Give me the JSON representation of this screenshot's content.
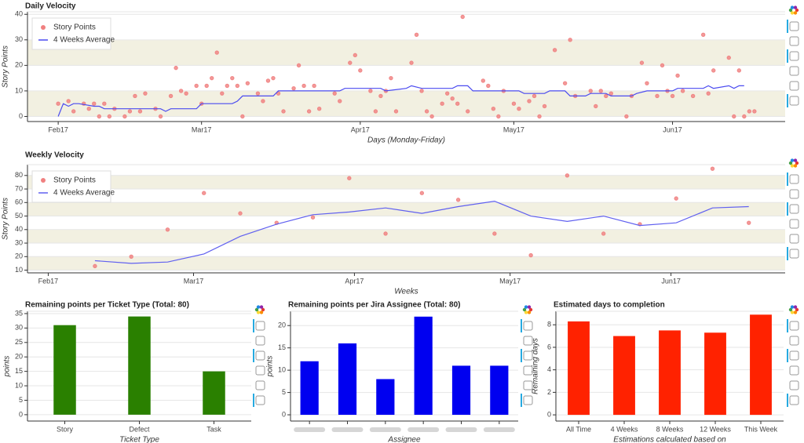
{
  "chart_data": [
    {
      "type": "scatter",
      "title": "Daily Velocity",
      "x_label": "Days (Monday-Friday)",
      "y_label": "Story Points",
      "xlim": [
        26,
        174
      ],
      "xticks": [
        {
          "value": 32,
          "label": "Feb17"
        },
        {
          "value": 60,
          "label": "Mar17"
        },
        {
          "value": 91,
          "label": "Apr17"
        },
        {
          "value": 121,
          "label": "May17"
        },
        {
          "value": 152,
          "label": "Jun17"
        }
      ],
      "ylim": [
        -2,
        41
      ],
      "yticks": [
        0,
        10,
        20,
        30,
        40
      ],
      "band_color": "#f2f0e1",
      "legend": "top_left",
      "series": [
        {
          "name": "Story Points",
          "style": "marker",
          "color": "#f08080",
          "x": [
            32,
            34,
            35,
            37,
            38,
            39,
            40,
            41,
            42,
            43,
            45,
            46,
            47,
            48,
            49,
            51,
            52,
            54,
            55,
            56,
            57,
            59,
            60,
            61,
            62,
            63,
            64,
            65,
            66,
            67,
            68,
            69,
            71,
            72,
            73,
            74,
            75,
            76,
            78,
            79,
            80,
            81,
            82,
            83,
            86,
            87,
            89,
            90,
            91,
            93,
            94,
            95,
            96,
            97,
            98,
            101,
            102,
            103,
            104,
            105,
            107,
            108,
            109,
            110,
            111,
            112,
            115,
            116,
            117,
            118,
            119,
            121,
            122,
            124,
            125,
            126,
            127,
            129,
            131,
            132,
            133,
            136,
            137,
            138,
            139,
            140,
            143,
            144,
            146,
            147,
            149,
            150,
            151,
            152,
            153,
            154,
            156,
            158,
            159,
            160,
            163,
            164,
            165,
            166,
            167,
            168
          ],
          "values": [
            5,
            6,
            2,
            5,
            3,
            5,
            0,
            5,
            0,
            3,
            0,
            2,
            8,
            2,
            9,
            3,
            0,
            8,
            19,
            10,
            9,
            12,
            5,
            12,
            15,
            25,
            9,
            12,
            15,
            12,
            0,
            13,
            9,
            6,
            14,
            15,
            9,
            2,
            11,
            20,
            12,
            2,
            12,
            3,
            9,
            6,
            21,
            24,
            18,
            10,
            2,
            8,
            10,
            15,
            2,
            21,
            32,
            10,
            2,
            0,
            5,
            9,
            7,
            5,
            39,
            2,
            14,
            12,
            3,
            0,
            10,
            5,
            3,
            6,
            8,
            0,
            4,
            26,
            13,
            30,
            8,
            10,
            4,
            10,
            8,
            9,
            0,
            8,
            21,
            13,
            8,
            20,
            10,
            8,
            16,
            10,
            8,
            32,
            9,
            18,
            23,
            0,
            18,
            0,
            2,
            2
          ]
        },
        {
          "name": "4 Weeks Average",
          "style": "line",
          "color": "#4b4bf0",
          "x": [
            32,
            33,
            34,
            35,
            36,
            39,
            40,
            41,
            47,
            52,
            53,
            54,
            59,
            60,
            66,
            67,
            68,
            74,
            75,
            87,
            88,
            95,
            96,
            100,
            101,
            103,
            109,
            110,
            112,
            113,
            122,
            123,
            127,
            128,
            131,
            132,
            135,
            136,
            139,
            140,
            144,
            145,
            147,
            152,
            153,
            158,
            159,
            160,
            163,
            164,
            165,
            166
          ],
          "values": [
            0,
            5,
            4,
            5,
            5,
            4,
            4,
            3,
            3,
            3,
            2,
            3,
            3,
            5,
            5,
            6,
            8,
            8,
            10,
            10,
            11,
            11,
            10,
            11,
            12,
            11,
            11,
            12,
            12,
            10,
            10,
            9,
            9,
            10,
            10,
            8,
            8,
            9,
            9,
            8,
            8,
            9,
            10,
            10,
            11,
            11,
            12,
            11,
            12,
            11,
            12,
            12
          ]
        }
      ]
    },
    {
      "type": "scatter",
      "title": "Weekly Velocity",
      "x_label": "Weeks",
      "y_label": "Story Points",
      "xlim": [
        28,
        174
      ],
      "xticks": [
        {
          "value": 32,
          "label": "Feb17"
        },
        {
          "value": 60,
          "label": "Mar17"
        },
        {
          "value": 91,
          "label": "Apr17"
        },
        {
          "value": 121,
          "label": "May17"
        },
        {
          "value": 152,
          "label": "Jun17"
        }
      ],
      "ylim": [
        8,
        88
      ],
      "yticks": [
        10,
        20,
        30,
        40,
        50,
        60,
        70,
        80
      ],
      "band_color": "#f2f0e1",
      "legend": "top_left",
      "series": [
        {
          "name": "Story Points",
          "style": "marker",
          "color": "#f08080",
          "x": [
            41,
            48,
            55,
            62,
            69,
            76,
            83,
            90,
            97,
            104,
            111,
            118,
            125,
            132,
            139,
            146,
            153,
            160,
            167
          ],
          "values": [
            13,
            20,
            40,
            67,
            52,
            45,
            49,
            78,
            37,
            67,
            62,
            37,
            21,
            80,
            37,
            44,
            63,
            85,
            45
          ]
        },
        {
          "name": "4 Weeks Average",
          "style": "line",
          "color": "#6060f0",
          "x": [
            41,
            48,
            55,
            62,
            69,
            76,
            83,
            90,
            97,
            104,
            111,
            118,
            125,
            132,
            139,
            146,
            153,
            160,
            167
          ],
          "values": [
            17,
            15,
            16,
            22,
            35,
            44,
            51,
            53,
            56,
            52,
            57,
            61,
            50,
            46,
            50,
            43,
            45,
            56,
            57
          ]
        }
      ]
    },
    {
      "type": "bar",
      "title": "Remaining points per Ticket Type (Total: 80)",
      "x_label": "Ticket Type",
      "y_label": "points",
      "categories": [
        "Story",
        "Defect",
        "Task"
      ],
      "values": [
        31,
        34,
        15
      ],
      "color": "#2a8000",
      "ylim": [
        -2.2,
        35.8
      ],
      "yticks": [
        0,
        5,
        10,
        15,
        20,
        25,
        30,
        35
      ]
    },
    {
      "type": "bar",
      "title": "Remaining points per Jira Assignee (Total: 80)",
      "x_label": "Assignee",
      "y_label": "points",
      "categories": [
        null,
        null,
        null,
        null,
        null,
        null
      ],
      "values": [
        12,
        16,
        8,
        22,
        11,
        11
      ],
      "color": "#0000f0",
      "ylim": [
        -1.4,
        23.2
      ],
      "yticks": [
        0,
        5,
        10,
        15,
        20
      ]
    },
    {
      "type": "bar",
      "title": "Estimated days to completion",
      "x_label": "Estimations calculated based on",
      "y_label": "Remaining days",
      "categories": [
        "All Time",
        "4 Weeks",
        "8 Weeks",
        "12 Weeks",
        "This Week"
      ],
      "values": [
        8.3,
        7.0,
        7.5,
        7.3,
        8.9
      ],
      "color": "#ff2200",
      "ylim": [
        -0.55,
        9.2
      ],
      "yticks": [
        0,
        2,
        4,
        6,
        8
      ]
    }
  ]
}
